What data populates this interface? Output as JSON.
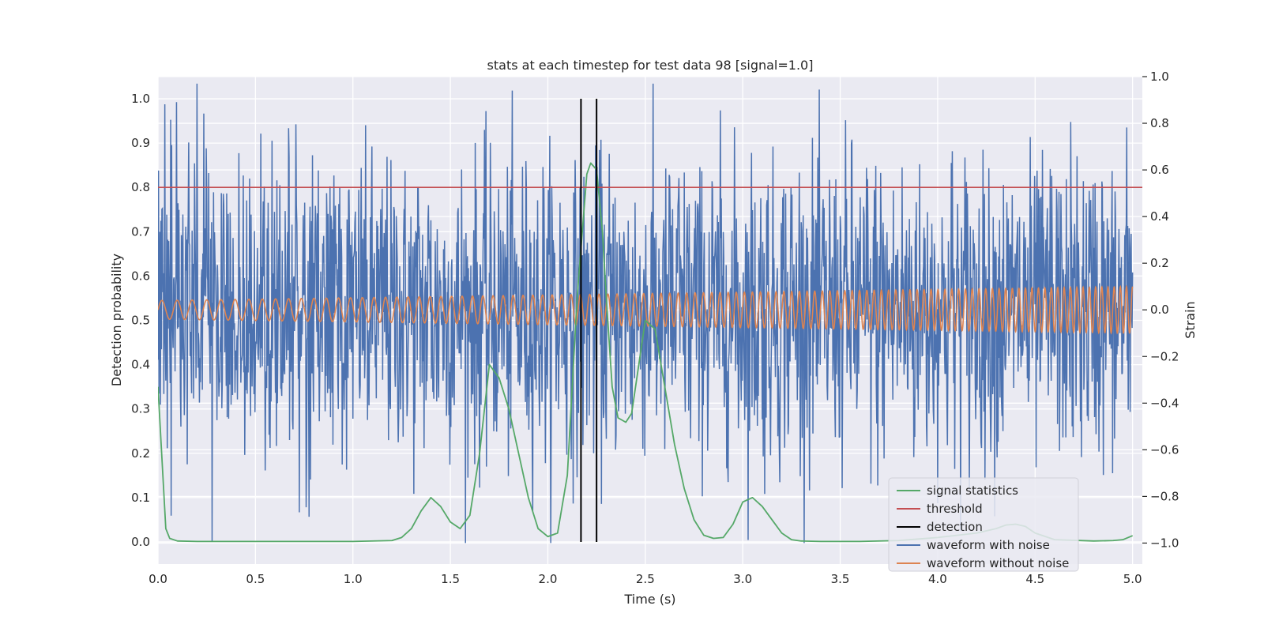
{
  "chart_data": {
    "type": "line",
    "title": "stats at each timestep for test data 98 [signal=1.0]",
    "xlabel": "Time (s)",
    "ylabel": "Detection probability",
    "y2label": "Strain",
    "xlim": [
      0.0,
      5.05
    ],
    "ylim": [
      -0.05,
      1.05
    ],
    "y2lim": [
      -1.09,
      1.0
    ],
    "xticks": [
      0.0,
      0.5,
      1.0,
      1.5,
      2.0,
      2.5,
      3.0,
      3.5,
      4.0,
      4.5,
      5.0
    ],
    "xtick_labels": [
      "0.0",
      "0.5",
      "1.0",
      "1.5",
      "2.0",
      "2.5",
      "3.0",
      "3.5",
      "4.0",
      "4.5",
      "5.0"
    ],
    "yticks": [
      0.0,
      0.1,
      0.2,
      0.3,
      0.4,
      0.5,
      0.6,
      0.7,
      0.8,
      0.9,
      1.0
    ],
    "ytick_labels": [
      "0.0",
      "0.1",
      "0.2",
      "0.3",
      "0.4",
      "0.5",
      "0.6",
      "0.7",
      "0.8",
      "0.9",
      "1.0"
    ],
    "y2ticks": [
      -1.0,
      -0.8,
      -0.6,
      -0.4,
      -0.2,
      0.0,
      0.2,
      0.4,
      0.6,
      0.8,
      1.0
    ],
    "y2tick_labels": [
      "−1.0",
      "−0.8",
      "−0.6",
      "−0.4",
      "−0.2",
      "0.0",
      "0.2",
      "0.4",
      "0.6",
      "0.8",
      "1.0"
    ],
    "grid": true,
    "legend_position": "lower-right",
    "threshold": 0.8,
    "detections": [
      2.17,
      2.25
    ],
    "signal_statistics": {
      "x": [
        0.0,
        0.02,
        0.04,
        0.06,
        0.1,
        0.2,
        0.5,
        1.0,
        1.2,
        1.25,
        1.3,
        1.35,
        1.4,
        1.45,
        1.5,
        1.55,
        1.6,
        1.65,
        1.7,
        1.75,
        1.8,
        1.85,
        1.9,
        1.95,
        2.0,
        2.05,
        2.1,
        2.15,
        2.2,
        2.22,
        2.25,
        2.28,
        2.3,
        2.33,
        2.36,
        2.4,
        2.43,
        2.46,
        2.5,
        2.55,
        2.6,
        2.65,
        2.7,
        2.75,
        2.8,
        2.85,
        2.9,
        2.95,
        3.0,
        3.05,
        3.1,
        3.15,
        3.2,
        3.25,
        3.3,
        3.4,
        3.6,
        3.8,
        4.0,
        4.2,
        4.3,
        4.35,
        4.4,
        4.45,
        4.5,
        4.6,
        4.8,
        4.9,
        4.95,
        5.0
      ],
      "y": [
        0.35,
        0.19,
        0.03,
        0.008,
        0.002,
        0.001,
        0.001,
        0.001,
        0.003,
        0.01,
        0.03,
        0.07,
        0.1,
        0.08,
        0.045,
        0.03,
        0.06,
        0.2,
        0.4,
        0.37,
        0.3,
        0.2,
        0.1,
        0.03,
        0.012,
        0.02,
        0.15,
        0.55,
        0.83,
        0.855,
        0.84,
        0.7,
        0.55,
        0.35,
        0.28,
        0.27,
        0.29,
        0.38,
        0.5,
        0.48,
        0.35,
        0.22,
        0.12,
        0.05,
        0.015,
        0.008,
        0.01,
        0.04,
        0.09,
        0.1,
        0.08,
        0.05,
        0.02,
        0.005,
        0.002,
        0.001,
        0.001,
        0.003,
        0.01,
        0.02,
        0.03,
        0.038,
        0.04,
        0.035,
        0.02,
        0.005,
        0.002,
        0.003,
        0.005,
        0.014
      ]
    },
    "waveform_without_noise": {
      "start_amplitude": 0.04,
      "end_amplitude": 0.1,
      "start_frequency": 12.5,
      "end_frequency": 32.0
    },
    "waveform_with_noise": {
      "description_range": [
        -1.0,
        0.97
      ]
    },
    "legend": [
      {
        "label": "signal statistics",
        "color": "#55a868"
      },
      {
        "label": "threshold",
        "color": "#c44e52"
      },
      {
        "label": "detection",
        "color": "#000000"
      },
      {
        "label": "waveform with noise",
        "color": "#4c72b0"
      },
      {
        "label": "waveform without noise",
        "color": "#dd8452"
      }
    ],
    "colors": {
      "axes_background": "#eaeaf2",
      "grid": "#ffffff",
      "signal_statistics": "#55a868",
      "threshold": "#c44e52",
      "detection": "#000000",
      "waveform_with_noise": "#4c72b0",
      "waveform_without_noise": "#dd8452"
    }
  }
}
